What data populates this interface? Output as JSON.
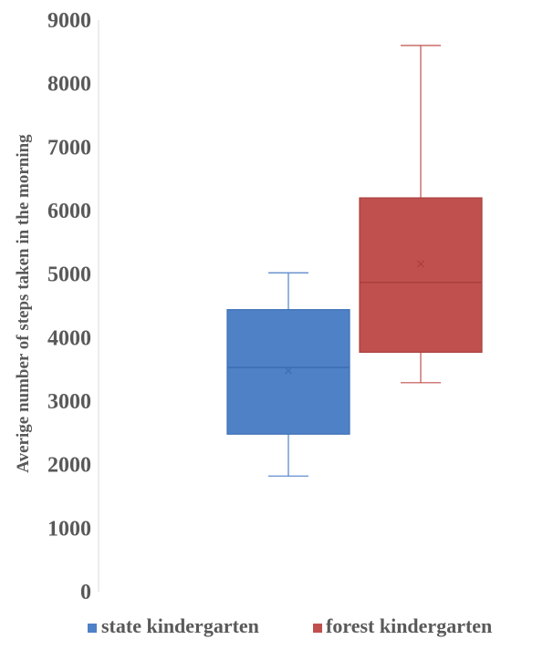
{
  "chart_data": {
    "type": "boxplot",
    "ylabel": "Averige number of steps taken in the morning",
    "ylim": [
      0,
      9000
    ],
    "yticks": [
      "0",
      "1000",
      "2000",
      "3000",
      "4000",
      "5000",
      "6000",
      "7000",
      "8000",
      "9000"
    ],
    "grid": false,
    "legend_position": "bottom",
    "series": [
      {
        "name": "state kindergarten",
        "color": "#4f81c7",
        "edge_color": "#3c6eb4",
        "min": 1820,
        "q1": 2480,
        "median": 3530,
        "mean": 3480,
        "q3": 4440,
        "max": 5020
      },
      {
        "name": "forest kindergarten",
        "color": "#c0504d",
        "edge_color": "#a8403d",
        "min": 3290,
        "q1": 3770,
        "median": 4870,
        "mean": 5160,
        "q3": 6200,
        "max": 8600
      }
    ]
  }
}
